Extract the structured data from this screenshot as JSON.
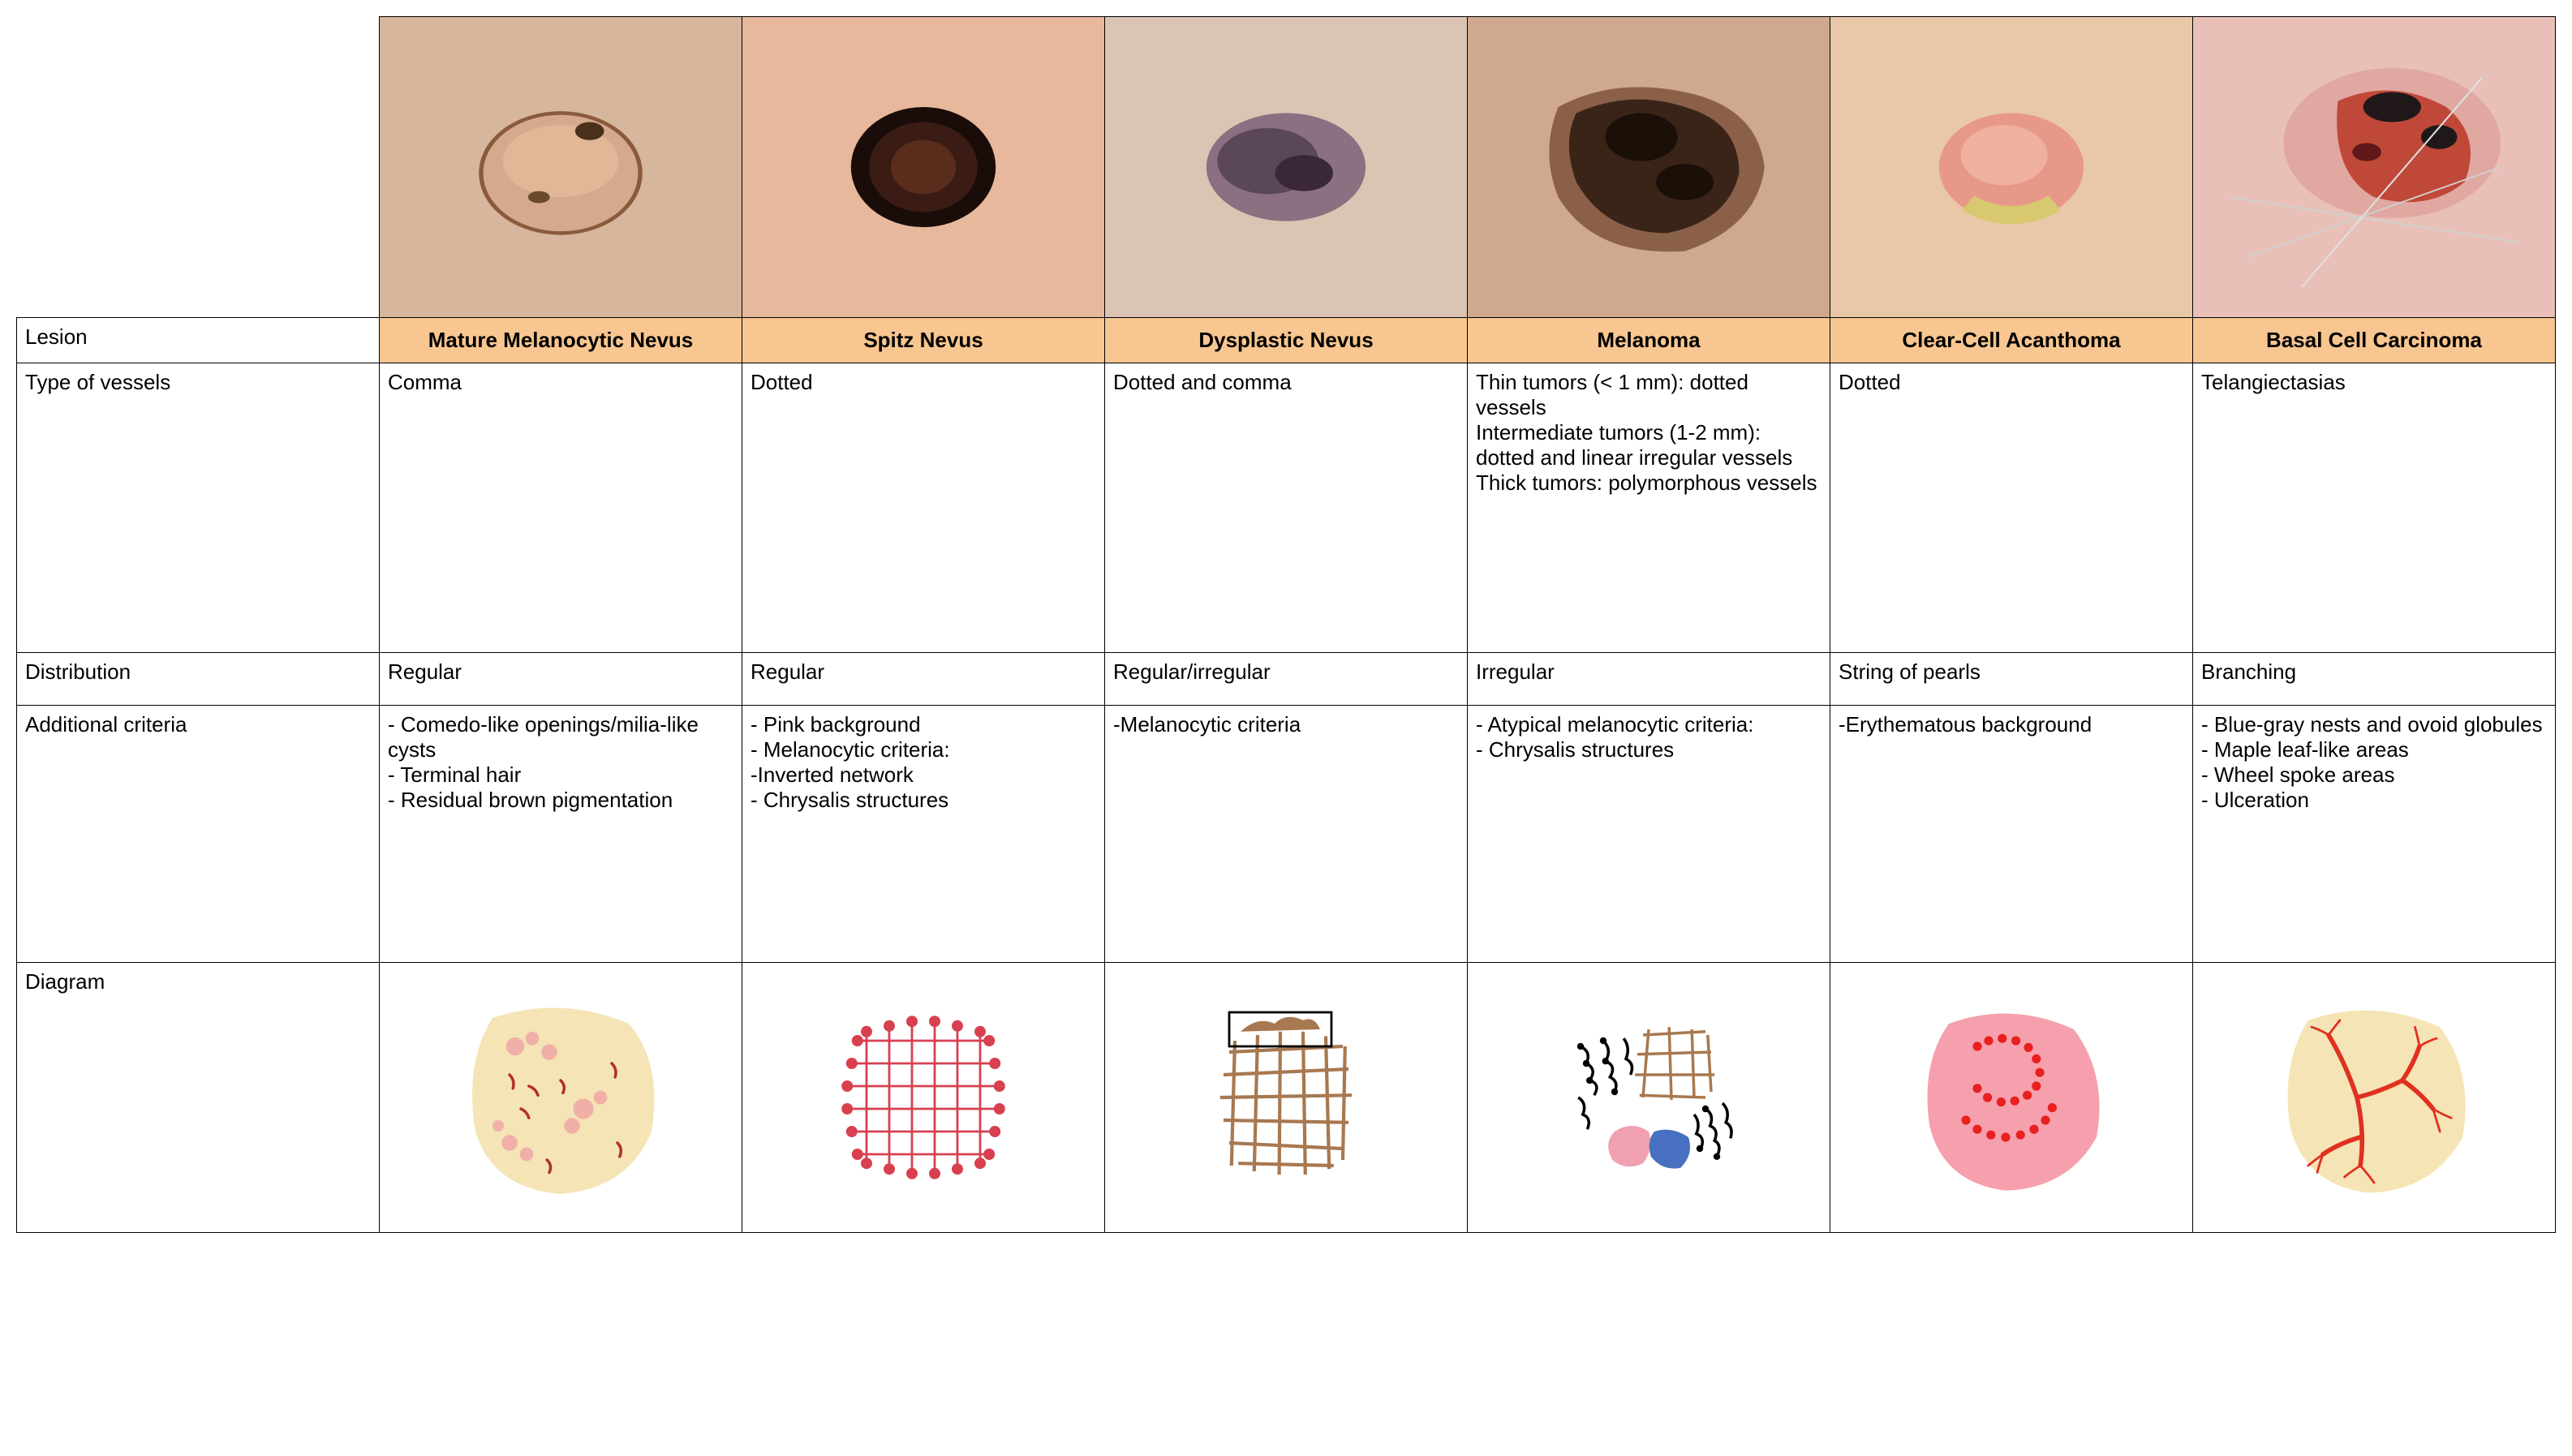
{
  "row_labels": {
    "lesion": "Lesion",
    "vessels": "Type of vessels",
    "distribution": "Distribution",
    "criteria": "Additional criteria",
    "diagram": "Diagram"
  },
  "columns": [
    {
      "lesion": "Mature Melanocytic Nevus",
      "vessels": "Comma",
      "distribution": "Regular",
      "criteria": "- Comedo-like openings/milia-like cysts\n- Terminal hair\n- Residual brown pigmentation",
      "diagram_type": "comma-nevus",
      "photo": {
        "skin": "#d6b69c",
        "lesion_fill": "#d4a98e",
        "lesion_edge": "#8a5a3a",
        "dark_spot": "#4a2f1a"
      }
    },
    {
      "lesion": "Spitz Nevus",
      "vessels": "Dotted",
      "distribution": "Regular",
      "criteria": "- Pink background\n- Melanocytic criteria:\n-Inverted network\n- Chrysalis structures",
      "diagram_type": "spitz",
      "photo": {
        "skin": "#e8b89c",
        "lesion_fill": "#2e1410",
        "lesion_edge": "#1a0c08"
      }
    },
    {
      "lesion": "Dysplastic Nevus",
      "vessels": "Dotted and comma",
      "distribution": "Regular/irregular",
      "criteria": "-Melanocytic criteria",
      "diagram_type": "dysplastic",
      "photo": {
        "skin": "#dcc4b4",
        "lesion_fill": "#6a5a6a",
        "lesion_edge": "#3a2838"
      }
    },
    {
      "lesion": "Melanoma",
      "vessels": "Thin tumors (< 1 mm): dotted vessels\nIntermediate tumors (1-2 mm): dotted and linear irregular vessels\nThick tumors: polymorphous vessels",
      "distribution": "Irregular",
      "criteria": " - Atypical melanocytic criteria:\n - Chrysalis structures",
      "diagram_type": "melanoma",
      "photo": {
        "skin": "#d0a890",
        "lesion_fill": "#3a2418",
        "lesion_edge": "#1a1008",
        "light": "#8a6048"
      }
    },
    {
      "lesion": "Clear-Cell Acanthoma",
      "vessels": "Dotted",
      "distribution": "  String of  pearls",
      "criteria": "-Erythematous background",
      "diagram_type": "acanthoma",
      "photo": {
        "skin": "#e8c8a8",
        "lesion_fill": "#e89888",
        "lesion_edge": "#d07060",
        "yellow": "#d8c870"
      }
    },
    {
      "lesion": "Basal Cell Carcinoma",
      "vessels": "  Telangiectasias",
      "distribution": "Branching",
      "criteria": " - Blue-gray nests and ovoid globules\n - Maple leaf-like areas\n - Wheel spoke areas\n - Ulceration",
      "diagram_type": "bcc",
      "photo": {
        "skin": "#e8c0b8",
        "lesion_fill": "#c04838",
        "lesion_edge": "#601818",
        "dark": "#201818"
      }
    }
  ],
  "diagram_colors": {
    "skin_beige": "#f5e4b5",
    "pink_bg": "#f5a0ac",
    "comma_red": "#b03030",
    "dot_pink": "#f0b0a8",
    "spitz_red": "#d84050",
    "brown_net": "#a87850",
    "black": "#000000",
    "pink_blob": "#f0a0b0",
    "blue_blob": "#4870c0",
    "bcc_red": "#e03020",
    "pearl_red": "#e82020"
  }
}
